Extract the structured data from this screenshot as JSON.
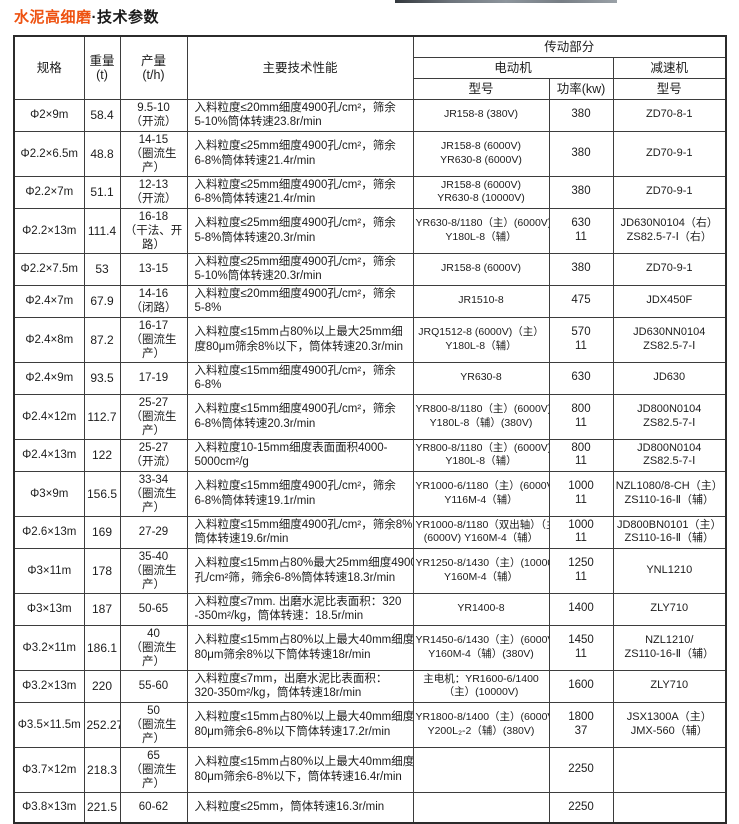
{
  "accent_color": "#ee5211",
  "decor": {
    "strip_colors": [
      "#33383d",
      "#6d747b",
      "#8d959c",
      "#777e85",
      "#9aa1a7"
    ]
  },
  "page_title": {
    "highlight": "水泥高细磨",
    "rest": "·技术参数"
  },
  "table": {
    "headers": {
      "spec": "规格",
      "weight_line1": "重量",
      "weight_line2": "(t)",
      "output_line1": "产量",
      "output_line2": "(t/h)",
      "performance": "主要技术性能",
      "transmission": "传动部分",
      "motor": "电动机",
      "reducer": "减速机",
      "motor_model": "型号",
      "motor_power": "功率(kw)",
      "reducer_model": "型号"
    },
    "rows": [
      {
        "spec": "Φ2×9m",
        "weight": "58.4",
        "output": [
          "9.5-10",
          "（开流）"
        ],
        "performance": [
          "入料粒度≤20mm细度4900孔/cm²，筛余",
          "5-10%筒体转速23.8r/min"
        ],
        "motor_model": [
          "JR158-8 (380V)"
        ],
        "power": [
          "380"
        ],
        "reducer_model": [
          "ZD70-8-1"
        ]
      },
      {
        "spec": "Φ2.2×6.5m",
        "weight": "48.8",
        "output": [
          "14-15",
          "（圈流生产）"
        ],
        "performance": [
          "入料粒度≤25mm细度4900孔/cm²，筛余",
          "6-8%筒体转速21.4r/min"
        ],
        "motor_model": [
          "JR158-8 (6000V)",
          "YR630-8 (6000V)"
        ],
        "power": [
          "380"
        ],
        "reducer_model": [
          "ZD70-9-1"
        ]
      },
      {
        "spec": "Φ2.2×7m",
        "weight": "51.1",
        "output": [
          "12-13",
          "（开流）"
        ],
        "performance": [
          "入料粒度≤25mm细度4900孔/cm²，筛余",
          "6-8%筒体转速21.4r/min"
        ],
        "motor_model": [
          "JR158-8 (6000V)",
          "YR630-8 (10000V)"
        ],
        "power": [
          "380"
        ],
        "reducer_model": [
          "ZD70-9-1"
        ]
      },
      {
        "spec": "Φ2.2×13m",
        "weight": "111.4",
        "output": [
          "16-18",
          "（干法、开路）"
        ],
        "performance": [
          "入料粒度≤25mm细度4900孔/cm²，筛余",
          "5-8%筒体转速20.3r/min"
        ],
        "motor_model": [
          "YR630-8/1180（主）(6000V)",
          "Y180L-8（辅）"
        ],
        "power": [
          "630",
          "11"
        ],
        "reducer_model": [
          "JD630N0104（右）",
          "ZS82.5-7-Ⅰ（右）"
        ]
      },
      {
        "spec": "Φ2.2×7.5m",
        "weight": "53",
        "output": [
          "13-15"
        ],
        "performance": [
          "入料粒度≤25mm细度4900孔/cm²，筛余",
          "5-10%筒体转速20.3r/min"
        ],
        "motor_model": [
          "JR158-8 (6000V)"
        ],
        "power": [
          "380"
        ],
        "reducer_model": [
          "ZD70-9-1"
        ]
      },
      {
        "spec": "Φ2.4×7m",
        "weight": "67.9",
        "output": [
          "14-16",
          "（闭路）"
        ],
        "performance": [
          "入料粒度≤20mm细度4900孔/cm²，筛余",
          "5-8%"
        ],
        "motor_model": [
          "JR1510-8"
        ],
        "power": [
          "475"
        ],
        "reducer_model": [
          "JDX450F"
        ]
      },
      {
        "spec": "Φ2.4×8m",
        "weight": "87.2",
        "output": [
          "16-17",
          "（圈流生产）"
        ],
        "performance": [
          "入料粒度≤15mm占80%以上最大25mm细",
          "度80μm筛余8%以下，筒体转速20.3r/min"
        ],
        "motor_model": [
          "JRQ1512-8 (6000V)（主）",
          "Y180L-8（辅）"
        ],
        "power": [
          "570",
          "11"
        ],
        "reducer_model": [
          "JD630NN0104",
          "ZS82.5-7-Ⅰ"
        ]
      },
      {
        "spec": "Φ2.4×9m",
        "weight": "93.5",
        "output": [
          "17-19"
        ],
        "performance": [
          "入料粒度≤15mm细度4900孔/cm²，筛余",
          "6-8%"
        ],
        "motor_model": [
          "YR630-8"
        ],
        "power": [
          "630"
        ],
        "reducer_model": [
          "JD630"
        ]
      },
      {
        "spec": "Φ2.4×12m",
        "weight": "112.7",
        "output": [
          "25-27",
          "（圈流生产）"
        ],
        "performance": [
          "入料粒度≤15mm细度4900孔/cm²，筛余",
          "6-8%筒体转速20.3r/min"
        ],
        "motor_model": [
          "YR800-8/1180（主）(6000V)",
          "Y180L-8（辅）(380V)"
        ],
        "power": [
          "800",
          "11"
        ],
        "reducer_model": [
          "JD800N0104",
          "ZS82.5-7-Ⅰ"
        ]
      },
      {
        "spec": "Φ2.4×13m",
        "weight": "122",
        "output": [
          "25-27",
          "（开流）"
        ],
        "performance": [
          "入料粒度10-15mm细度表面面积4000-",
          "5000cm²/g"
        ],
        "motor_model": [
          "YR800-8/1180（主）(6000V)",
          "Y180L-8（辅）"
        ],
        "power": [
          "800",
          "11"
        ],
        "reducer_model": [
          "JD800N0104",
          "ZS82.5-7-Ⅰ"
        ]
      },
      {
        "spec": "Φ3×9m",
        "weight": "156.5",
        "output": [
          "33-34",
          "（圈流生产）"
        ],
        "performance": [
          "入料粒度≤15mm细度4900孔/cm²，筛余",
          "6-8%筒体转速19.1r/min"
        ],
        "motor_model": [
          "YR1000-6/1180（主）(6000V)",
          "Y116M-4（辅）"
        ],
        "power": [
          "1000",
          "11"
        ],
        "reducer_model": [
          "NZL1080/8-CH（主）",
          "ZS110-16-Ⅱ（辅）"
        ]
      },
      {
        "spec": "Φ2.6×13m",
        "weight": "169",
        "output": [
          "27-29"
        ],
        "performance": [
          "入料粒度≤15mm细度4900孔/cm²，筛余8%",
          "筒体转速19.6r/min"
        ],
        "motor_model": [
          "YR1000-8/1180（双出轴）（主）",
          "(6000V)  Y160M-4（辅）"
        ],
        "power": [
          "1000",
          "11"
        ],
        "reducer_model": [
          "JD800BN0101（主）",
          "ZS110-16-Ⅱ（辅）"
        ]
      },
      {
        "spec": "Φ3×11m",
        "weight": "178",
        "output": [
          "35-40",
          "（圈流生产）"
        ],
        "performance": [
          "入料粒度≤15mm占80%最大25mm细度4900",
          "孔/cm²筛，筛余6-8%筒体转速18.3r/min"
        ],
        "motor_model": [
          "YR1250-8/1430（主）(10000V)",
          "Y160M-4（辅）"
        ],
        "power": [
          "1250",
          "11"
        ],
        "reducer_model": [
          "YNL1210"
        ]
      },
      {
        "spec": "Φ3×13m",
        "weight": "187",
        "output": [
          "50-65"
        ],
        "performance": [
          "入料粒度≤7mm. 出磨水泥比表面积：320",
          "-350m²/kg，筒体转速：18.5r/min"
        ],
        "motor_model": [
          "YR1400-8"
        ],
        "power": [
          "1400"
        ],
        "reducer_model": [
          "ZLY710"
        ]
      },
      {
        "spec": "Φ3.2×11m",
        "weight": "186.1",
        "output": [
          "40",
          "（圈流生产）"
        ],
        "performance": [
          "入料粒度≤15mm占80%以上最大40mm细度",
          "80μm筛余8%以下筒体转速18r/min"
        ],
        "motor_model": [
          "YR1450-6/1430（主）(6000V)",
          "Y160M-4（辅）(380V)"
        ],
        "power": [
          "1450",
          "11"
        ],
        "reducer_model": [
          "NZL1210/",
          "ZS110-16-Ⅱ（辅）"
        ]
      },
      {
        "spec": "Φ3.2×13m",
        "weight": "220",
        "output": [
          "55-60"
        ],
        "performance": [
          "入料粒度≤7mm，出磨水泥比表面积：",
          "320-350m²/kg，筒体转速18r/min"
        ],
        "motor_model": [
          "主电机：YR1600-6/1400",
          "（主）(10000V)"
        ],
        "power": [
          "1600"
        ],
        "reducer_model": [
          "ZLY710"
        ]
      },
      {
        "spec": "Φ3.5×11.5m",
        "weight": "252.27",
        "output": [
          "50",
          "（圈流生产）"
        ],
        "performance": [
          "入料粒度≤15mm占80%以上最大40mm细度",
          "80μm筛余6-8%以下筒体转速17.2r/min"
        ],
        "motor_model": [
          "YR1800-8/1400（主）(6000V)",
          "Y200L₂-2（辅）(380V)"
        ],
        "power": [
          "1800",
          "37"
        ],
        "reducer_model": [
          "JSX1300A（主）",
          "JMX-560（辅）"
        ]
      },
      {
        "spec": "Φ3.7×12m",
        "weight": "218.3",
        "output": [
          "65",
          "（圈流生产）"
        ],
        "performance": [
          "入料粒度≤15mm占80%以上最大40mm细度",
          "80μm筛余6-8%以下，筒体转速16.4r/min"
        ],
        "motor_model": [
          ""
        ],
        "power": [
          "2250"
        ],
        "reducer_model": [
          ""
        ]
      },
      {
        "spec": "Φ3.8×13m",
        "weight": "221.5",
        "output": [
          "60-62"
        ],
        "performance": [
          "入料粒度≤25mm，筒体转速16.3r/min"
        ],
        "motor_model": [
          ""
        ],
        "power": [
          "2250"
        ],
        "reducer_model": [
          ""
        ]
      }
    ]
  }
}
